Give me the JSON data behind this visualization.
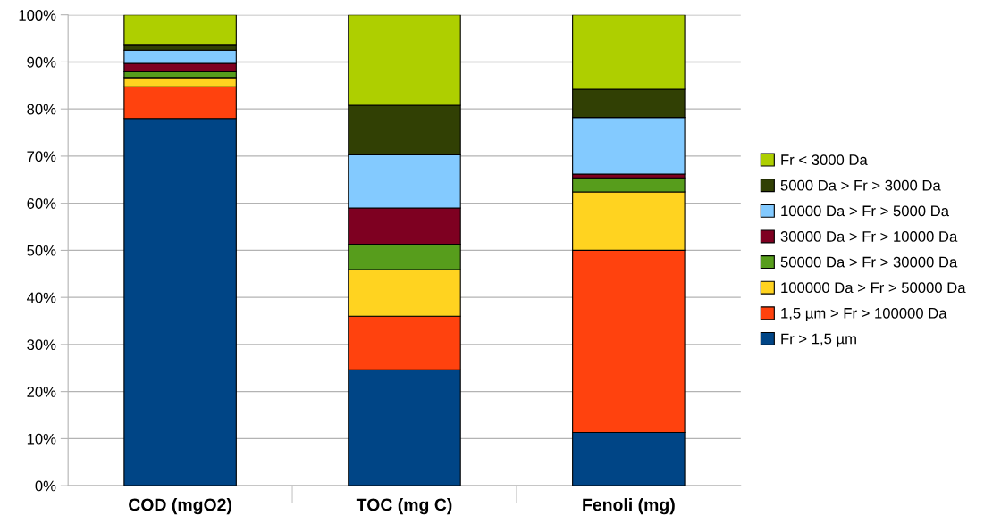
{
  "chart_data": {
    "type": "bar",
    "stacked": true,
    "categories": [
      "COD (mgO2)",
      "TOC (mg C)",
      "Fenoli (mg)"
    ],
    "series": [
      {
        "name": "Fr > 1,5 µm",
        "color": "#004586",
        "values": [
          78.0,
          24.6,
          11.3
        ]
      },
      {
        "name": "1,5 µm > Fr > 100000 Da",
        "color": "#ff420e",
        "values": [
          6.7,
          11.4,
          38.7
        ]
      },
      {
        "name": "100000 Da > Fr > 50000 Da",
        "color": "#ffd320",
        "values": [
          2.0,
          9.9,
          12.4
        ]
      },
      {
        "name": "50000 Da > Fr > 30000 Da",
        "color": "#579d1c",
        "values": [
          1.2,
          5.4,
          3.0
        ]
      },
      {
        "name": "30000 Da > Fr > 10000 Da",
        "color": "#7e0021",
        "values": [
          1.8,
          7.7,
          0.8
        ]
      },
      {
        "name": "10000 Da > Fr > 5000 Da",
        "color": "#83caff",
        "values": [
          2.8,
          11.3,
          12.0
        ]
      },
      {
        "name": "5000 Da > Fr > 3000 Da",
        "color": "#314004",
        "values": [
          1.2,
          10.5,
          6.0
        ]
      },
      {
        "name": "Fr < 3000 Da",
        "color": "#aecf00",
        "values": [
          6.3,
          19.2,
          15.8
        ]
      }
    ],
    "ylim": [
      0,
      100
    ],
    "yticks": [
      {
        "value": 0,
        "label": "0%"
      },
      {
        "value": 10,
        "label": "10%"
      },
      {
        "value": 20,
        "label": "20%"
      },
      {
        "value": 30,
        "label": "30%"
      },
      {
        "value": 40,
        "label": "40%"
      },
      {
        "value": 50,
        "label": "50%"
      },
      {
        "value": 60,
        "label": "60%"
      },
      {
        "value": 70,
        "label": "70%"
      },
      {
        "value": 80,
        "label": "80%"
      },
      {
        "value": 90,
        "label": "90%"
      },
      {
        "value": 100,
        "label": "100%"
      }
    ],
    "grid": "y",
    "legend": "right"
  }
}
